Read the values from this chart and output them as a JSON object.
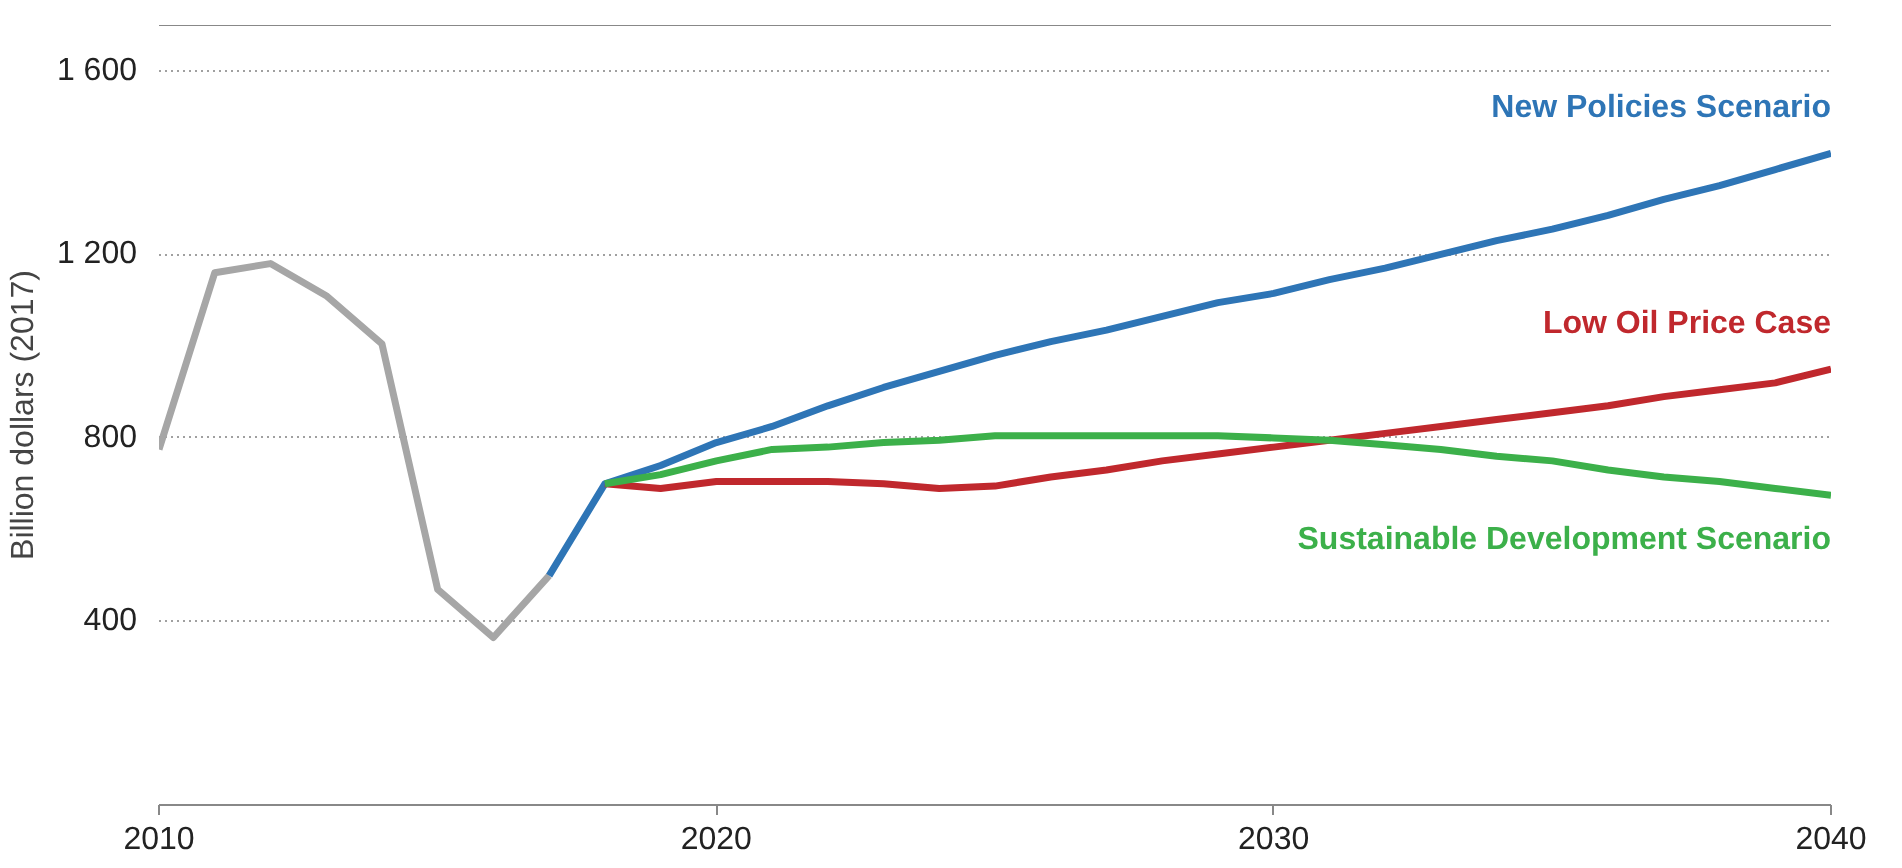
{
  "chart_data": {
    "type": "line",
    "ylabel": "Billion dollars (2017)",
    "xlim": [
      2010,
      2040
    ],
    "xticks": [
      2010,
      2020,
      2030,
      2040
    ],
    "ylim": [
      0,
      1700
    ],
    "yticks": [
      400,
      800,
      1200,
      1600
    ],
    "grid": "y",
    "series": [
      {
        "color": "#a6a6a6",
        "x": [
          2010,
          2011,
          2012,
          2013,
          2014,
          2015,
          2016,
          2017
        ],
        "values": [
          775,
          1160,
          1180,
          1110,
          1005,
          470,
          365,
          500
        ]
      },
      {
        "name": "New Policies Scenario",
        "color": "#2e75b6",
        "x": [
          2017,
          2018,
          2019,
          2020,
          2021,
          2022,
          2023,
          2024,
          2025,
          2026,
          2027,
          2028,
          2029,
          2030,
          2031,
          2032,
          2033,
          2034,
          2035,
          2036,
          2037,
          2038,
          2039,
          2040
        ],
        "values": [
          500,
          700,
          740,
          790,
          825,
          870,
          910,
          945,
          980,
          1010,
          1035,
          1065,
          1095,
          1115,
          1145,
          1170,
          1200,
          1230,
          1255,
          1285,
          1320,
          1350,
          1385,
          1420
        ]
      },
      {
        "name": "Low Oil Price Case",
        "color": "#c0282d",
        "x": [
          2018,
          2019,
          2020,
          2021,
          2022,
          2023,
          2024,
          2025,
          2026,
          2027,
          2028,
          2029,
          2030,
          2031,
          2032,
          2033,
          2034,
          2035,
          2036,
          2037,
          2038,
          2039,
          2040
        ],
        "values": [
          700,
          690,
          705,
          705,
          705,
          700,
          690,
          695,
          715,
          730,
          750,
          765,
          780,
          795,
          810,
          825,
          840,
          855,
          870,
          890,
          905,
          920,
          950
        ]
      },
      {
        "name": "Sustainable Development Scenario",
        "color": "#3cb04a",
        "x": [
          2018,
          2019,
          2020,
          2021,
          2022,
          2023,
          2024,
          2025,
          2026,
          2027,
          2028,
          2029,
          2030,
          2031,
          2032,
          2033,
          2034,
          2035,
          2036,
          2037,
          2038,
          2039,
          2040
        ],
        "values": [
          700,
          720,
          750,
          775,
          780,
          790,
          795,
          805,
          805,
          805,
          805,
          805,
          800,
          795,
          785,
          775,
          760,
          750,
          730,
          715,
          705,
          690,
          675
        ]
      }
    ]
  }
}
